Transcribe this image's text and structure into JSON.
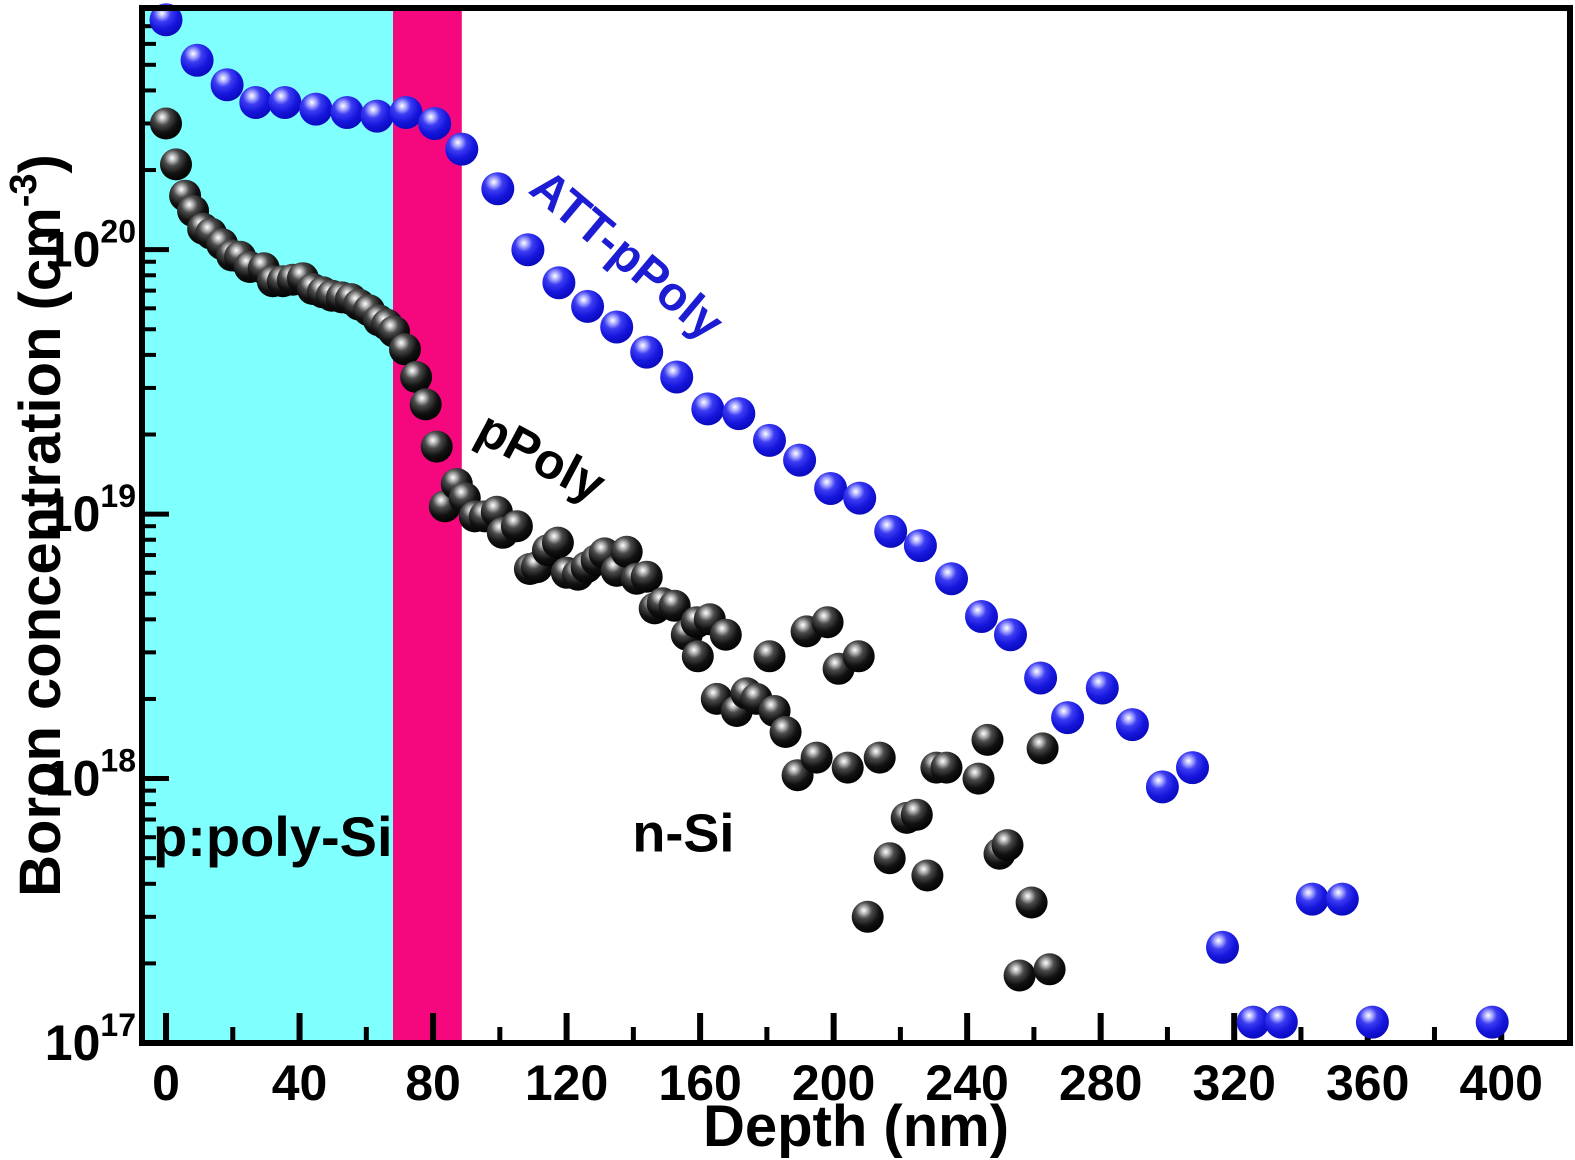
{
  "figure": {
    "kind": "scientific-scatter-figure",
    "background": "#ffffff",
    "frame_color": "#000000"
  },
  "chart_data": {
    "type": "scatter",
    "title": "",
    "xlabel": "Depth (nm)",
    "ylabel_main": "Boron concentration (cm",
    "ylabel_sup": "-3",
    "ylabel_close": ")",
    "x_axis": {
      "scale": "linear",
      "lim": [
        -7.2,
        420.6
      ],
      "major_ticks": [
        0,
        40,
        80,
        120,
        160,
        200,
        240,
        280,
        320,
        360,
        400
      ],
      "minor_ticks": [
        20,
        60,
        100,
        140,
        180,
        220,
        260,
        300,
        340,
        380
      ]
    },
    "y_axis": {
      "scale": "log",
      "lim": [
        1e+17,
        8.2e+20
      ],
      "major_tick_exponents": [
        17,
        18,
        19,
        20
      ],
      "minor_multiples": [
        2,
        3,
        4,
        5,
        6,
        7,
        8,
        9
      ]
    },
    "grid": "off",
    "legend": "none",
    "regions": [
      {
        "id": "p-poly-si-region",
        "x_from_nm": -7.2,
        "x_to_nm": 68.0,
        "color": "#80ffff"
      },
      {
        "id": "interface-region",
        "x_from_nm": 68.0,
        "x_to_nm": 88.6,
        "color": "#f5077e"
      }
    ],
    "series": [
      {
        "name": "ATT-pPoly",
        "marker": "blue-sphere",
        "color": "#1c1cd2",
        "marker_radius_px": 16.5,
        "points": [
          [
            0.0,
            7.4e+20
          ],
          [
            9.3,
            5.2e+20
          ],
          [
            18.3,
            4.2e+20
          ],
          [
            26.9,
            3.6e+20
          ],
          [
            35.6,
            3.6e+20
          ],
          [
            44.9,
            3.4e+20
          ],
          [
            54.2,
            3.3e+20
          ],
          [
            63.2,
            3.2e+20
          ],
          [
            71.9,
            3.3e+20
          ],
          [
            80.5,
            3e+20
          ],
          [
            88.6,
            2.4e+20
          ],
          [
            99.4,
            1.7e+20
          ],
          [
            108.4,
            1e+20
          ],
          [
            117.7,
            7.5e+19
          ],
          [
            126.3,
            6.1e+19
          ],
          [
            135.0,
            5.1e+19
          ],
          [
            144.0,
            4.1e+19
          ],
          [
            153.0,
            3.3e+19
          ],
          [
            162.3,
            2.5e+19
          ],
          [
            171.6,
            2.4e+19
          ],
          [
            180.8,
            1.9e+19
          ],
          [
            189.8,
            1.6e+19
          ],
          [
            199.1,
            1.25e+19
          ],
          [
            207.8,
            1.15e+19
          ],
          [
            217.1,
            8.6e+18
          ],
          [
            226.0,
            7.6e+18
          ],
          [
            235.3,
            5.7e+18
          ],
          [
            244.3,
            4.1e+18
          ],
          [
            253.0,
            3.5e+18
          ],
          [
            262.0,
            2.4e+18
          ],
          [
            270.1,
            1.7e+18
          ],
          [
            280.5,
            2.2e+18
          ],
          [
            289.5,
            1.6e+18
          ],
          [
            298.5,
            9.3e+17
          ],
          [
            307.5,
            1.1e+18
          ],
          [
            316.5,
            2.3e+17
          ],
          [
            325.7,
            1.2e+17
          ],
          [
            334.1,
            1.2e+17
          ],
          [
            343.4,
            3.5e+17
          ],
          [
            352.4,
            3.5e+17
          ],
          [
            361.4,
            1.2e+17
          ],
          [
            397.3,
            1.2e+17
          ]
        ]
      },
      {
        "name": "pPoly",
        "marker": "black-sphere",
        "color": "#000000",
        "marker_radius_px": 16,
        "points": [
          [
            0.0,
            3e+20
          ],
          [
            3.0,
            2.1e+20
          ],
          [
            5.7,
            1.6e+20
          ],
          [
            8.1,
            1.4e+20
          ],
          [
            11.1,
            1.2e+20
          ],
          [
            13.5,
            1.15e+20
          ],
          [
            16.8,
            1.05e+20
          ],
          [
            19.8,
            9.5e+19
          ],
          [
            22.2,
            9.4e+19
          ],
          [
            25.1,
            8.6e+19
          ],
          [
            29.3,
            8.5e+19
          ],
          [
            32.0,
            7.6e+19
          ],
          [
            35.0,
            7.6e+19
          ],
          [
            38.0,
            7.7e+19
          ],
          [
            41.0,
            7.8e+19
          ],
          [
            44.0,
            7.1e+19
          ],
          [
            47.0,
            6.9e+19
          ],
          [
            49.7,
            6.7e+19
          ],
          [
            52.7,
            6.6e+19
          ],
          [
            55.4,
            6.5e+19
          ],
          [
            57.8,
            6.2e+19
          ],
          [
            60.8,
            5.9e+19
          ],
          [
            63.8,
            5.4e+19
          ],
          [
            66.2,
            5.2e+19
          ],
          [
            68.3,
            4.9e+19
          ],
          [
            71.6,
            4.2e+19
          ],
          [
            74.9,
            3.3e+19
          ],
          [
            77.8,
            2.6e+19
          ],
          [
            81.1,
            1.8e+19
          ],
          [
            83.5,
            1.07e+19
          ],
          [
            87.1,
            1.3e+19
          ],
          [
            89.5,
            1.15e+19
          ],
          [
            92.5,
            9.8e+18
          ],
          [
            95.5,
            9.8e+18
          ],
          [
            99.1,
            1.02e+19
          ],
          [
            100.9,
            8.5e+18
          ],
          [
            105.1,
            9e+18
          ],
          [
            109.0,
            6.2e+18
          ],
          [
            111.1,
            6.3e+18
          ],
          [
            114.4,
            7.3e+18
          ],
          [
            117.4,
            7.8e+18
          ],
          [
            120.1,
            6e+18
          ],
          [
            123.4,
            5.9e+18
          ],
          [
            126.0,
            6.3e+18
          ],
          [
            129.0,
            6.7e+18
          ],
          [
            131.4,
            7.1e+18
          ],
          [
            135.0,
            6.1e+18
          ],
          [
            138.0,
            7.2e+18
          ],
          [
            141.0,
            5.7e+18
          ],
          [
            144.0,
            5.8e+18
          ],
          [
            146.4,
            4.4e+18
          ],
          [
            148.8,
            4.6e+18
          ],
          [
            152.4,
            4.5e+18
          ],
          [
            156.0,
            3.5e+18
          ],
          [
            159.0,
            3.9e+18
          ],
          [
            162.9,
            4e+18
          ],
          [
            167.7,
            3.5e+18
          ],
          [
            159.3,
            2.9e+18
          ],
          [
            165.0,
            2e+18
          ],
          [
            171.0,
            1.8e+18
          ],
          [
            173.9,
            2.1e+18
          ],
          [
            176.9,
            2e+18
          ],
          [
            180.8,
            2.9e+18
          ],
          [
            182.3,
            1.8e+18
          ],
          [
            185.6,
            1.5e+18
          ],
          [
            189.2,
            1.03e+18
          ],
          [
            191.9,
            3.6e+18
          ],
          [
            194.9,
            1.2e+18
          ],
          [
            198.2,
            3.9e+18
          ],
          [
            201.5,
            2.6e+18
          ],
          [
            204.2,
            1.1e+18
          ],
          [
            207.5,
            2.9e+18
          ],
          [
            210.2,
            3e+17
          ],
          [
            213.8,
            1.2e+18
          ],
          [
            216.8,
            5e+17
          ],
          [
            221.9,
            7.1e+17
          ],
          [
            224.9,
            7.3e+17
          ],
          [
            228.1,
            4.3e+17
          ],
          [
            230.8,
            1.1e+18
          ],
          [
            233.8,
            1.1e+18
          ],
          [
            243.4,
            1e+18
          ],
          [
            246.1,
            1.4e+18
          ],
          [
            249.7,
            5.2e+17
          ],
          [
            252.1,
            5.6e+17
          ],
          [
            255.7,
            1.8e+17
          ],
          [
            259.3,
            3.4e+17
          ],
          [
            262.6,
            1.3e+18
          ],
          [
            264.7,
            1.9e+17
          ]
        ]
      }
    ],
    "annotations": [
      {
        "id": "att-ppoly-label",
        "text": "ATT-pPoly",
        "x_nm": 135,
        "conc": 8.6e+19,
        "rotation_deg": 40,
        "color": "#1c1cd2",
        "font_px": 48
      },
      {
        "id": "ppoly-label",
        "text": "pPoly",
        "x_nm": 110,
        "conc": 1.45e+19,
        "rotation_deg": 28,
        "color": "#000000",
        "font_px": 50
      },
      {
        "id": "p-poly-si-label",
        "text": "p:poly-Si",
        "x_nm": 32,
        "conc": 5.1e+17,
        "rotation_deg": 0,
        "color": "#000000",
        "font_px": 56
      },
      {
        "id": "n-si-label",
        "text": "n-Si",
        "x_nm": 155,
        "conc": 5.3e+17,
        "rotation_deg": 0,
        "color": "#000000",
        "font_px": 54
      }
    ]
  }
}
